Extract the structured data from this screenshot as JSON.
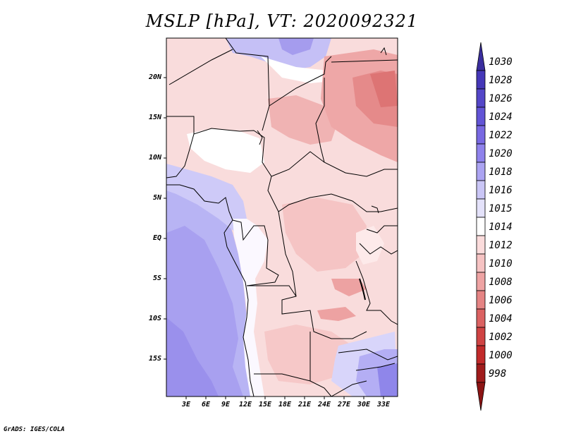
{
  "title": "MSLP [hPa], VT: 2020092321",
  "credit": "GrADS: IGES/COLA",
  "map": {
    "lat_labels": [
      "20N",
      "15N",
      "10N",
      "5N",
      "EQ",
      "5S",
      "10S",
      "15S"
    ],
    "lon_labels": [
      "3E",
      "6E",
      "9E",
      "12E",
      "15E",
      "18E",
      "21E",
      "24E",
      "27E",
      "30E",
      "33E"
    ]
  },
  "colorbar": {
    "labels": [
      "1030",
      "1028",
      "1026",
      "1024",
      "1022",
      "1020",
      "1018",
      "1016",
      "1015",
      "1014",
      "1012",
      "1010",
      "1008",
      "1006",
      "1004",
      "1002",
      "1000",
      "998"
    ],
    "colors": [
      "#3a2e9e",
      "#4537b8",
      "#5446c8",
      "#6254d6",
      "#7868e2",
      "#8f82ec",
      "#aca4f2",
      "#cac6f6",
      "#e4e2fa",
      "#ffffff",
      "#fbdcdc",
      "#f6c3c3",
      "#eea3a3",
      "#e58484",
      "#db6262",
      "#cf4343",
      "#c12a2a",
      "#a01c1c",
      "#8c1414"
    ]
  }
}
